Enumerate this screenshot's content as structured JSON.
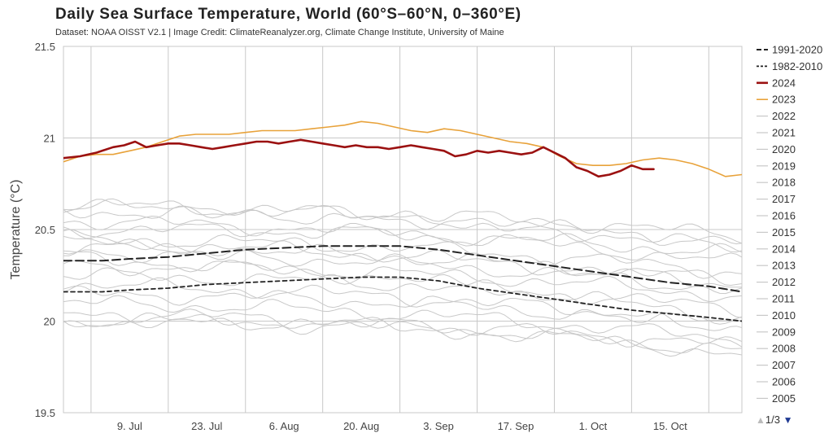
{
  "title": "Daily Sea Surface Temperature, World (60°S–60°N, 0–360°E)",
  "subtitle": "Dataset: NOAA OISST V2.1 | Image Credit: ClimateReanalyzer.org, Climate Change Institute, University of Maine",
  "legend_nav": {
    "up": "▲",
    "page": "1/3",
    "down": "▼"
  },
  "colors": {
    "climatology": "#222222",
    "y2024": "#9b1111",
    "y2023": "#e8a23a",
    "past": "#c8c8c8",
    "grid": "#c8c8c8"
  },
  "chart_data": {
    "type": "line",
    "ylabel": "Temperature (°C)",
    "xlabel": "",
    "ylim": [
      19.5,
      21.5
    ],
    "yticks": [
      19.5,
      20,
      20.5,
      21,
      21.5
    ],
    "ytick_labels": [
      "19.5",
      "20",
      "20.5",
      "21",
      "21.5"
    ],
    "xlim": [
      178,
      301
    ],
    "xticks": [
      {
        "day": 190,
        "label": "9. Jul"
      },
      {
        "day": 204,
        "label": "23. Jul"
      },
      {
        "day": 218,
        "label": "6. Aug"
      },
      {
        "day": 232,
        "label": "20. Aug"
      },
      {
        "day": 246,
        "label": "3. Sep"
      },
      {
        "day": 260,
        "label": "17. Sep"
      },
      {
        "day": 274,
        "label": "1. Oct"
      },
      {
        "day": 288,
        "label": "15. Oct"
      }
    ],
    "x_gridlines": [
      183,
      197,
      211,
      225,
      239,
      253,
      267,
      281,
      295
    ],
    "legend_position": "right",
    "series": [
      {
        "name": "1991-2020",
        "style": "dashed-long",
        "color": "#222222",
        "x": [
          178,
          185,
          190,
          197,
          204,
          211,
          218,
          225,
          232,
          239,
          246,
          253,
          260,
          267,
          274,
          281,
          288,
          295,
          301
        ],
        "values": [
          20.33,
          20.33,
          20.34,
          20.35,
          20.37,
          20.39,
          20.4,
          20.41,
          20.41,
          20.41,
          20.39,
          20.36,
          20.33,
          20.3,
          20.27,
          20.24,
          20.21,
          20.19,
          20.16
        ]
      },
      {
        "name": "1982-2010",
        "style": "dashed-short",
        "color": "#222222",
        "x": [
          178,
          185,
          190,
          197,
          204,
          211,
          218,
          225,
          232,
          239,
          246,
          253,
          260,
          267,
          274,
          281,
          288,
          295,
          301
        ],
        "values": [
          20.16,
          20.16,
          20.17,
          20.18,
          20.2,
          20.21,
          20.22,
          20.23,
          20.24,
          20.24,
          20.22,
          20.18,
          20.15,
          20.12,
          20.09,
          20.06,
          20.04,
          20.02,
          20.0
        ]
      },
      {
        "name": "2024",
        "style": "solid-thick",
        "color": "#9b1111",
        "x": [
          178,
          181,
          184,
          187,
          189,
          191,
          193,
          195,
          197,
          199,
          201,
          203,
          205,
          207,
          209,
          211,
          213,
          215,
          217,
          219,
          221,
          223,
          225,
          227,
          229,
          231,
          233,
          235,
          237,
          239,
          241,
          243,
          245,
          247,
          249,
          251,
          253,
          255,
          257,
          259,
          261,
          263,
          265,
          267,
          269,
          271,
          273,
          275,
          277,
          279,
          281,
          283,
          285
        ],
        "values": [
          20.89,
          20.9,
          20.92,
          20.95,
          20.96,
          20.98,
          20.95,
          20.96,
          20.97,
          20.97,
          20.96,
          20.95,
          20.94,
          20.95,
          20.96,
          20.97,
          20.98,
          20.98,
          20.97,
          20.98,
          20.99,
          20.98,
          20.97,
          20.96,
          20.95,
          20.96,
          20.95,
          20.95,
          20.94,
          20.95,
          20.96,
          20.95,
          20.94,
          20.93,
          20.9,
          20.91,
          20.93,
          20.92,
          20.93,
          20.92,
          20.91,
          20.92,
          20.95,
          20.92,
          20.89,
          20.84,
          20.82,
          20.79,
          20.8,
          20.82,
          20.85,
          20.83,
          20.83
        ]
      },
      {
        "name": "2023",
        "style": "solid",
        "color": "#e8a23a",
        "x": [
          178,
          181,
          184,
          187,
          190,
          193,
          196,
          199,
          202,
          205,
          208,
          211,
          214,
          217,
          220,
          223,
          226,
          229,
          232,
          235,
          238,
          241,
          244,
          247,
          250,
          253,
          256,
          259,
          262,
          265,
          268,
          271,
          274,
          277,
          280,
          283,
          286,
          289,
          292,
          295,
          298,
          301
        ],
        "values": [
          20.87,
          20.9,
          20.91,
          20.91,
          20.93,
          20.95,
          20.98,
          21.01,
          21.02,
          21.02,
          21.02,
          21.03,
          21.04,
          21.04,
          21.04,
          21.05,
          21.06,
          21.07,
          21.09,
          21.08,
          21.06,
          21.04,
          21.03,
          21.05,
          21.04,
          21.02,
          21.0,
          20.98,
          20.97,
          20.95,
          20.9,
          20.86,
          20.85,
          20.85,
          20.86,
          20.88,
          20.89,
          20.88,
          20.86,
          20.83,
          20.79,
          20.8
        ]
      },
      {
        "name": "2022",
        "style": "solid-thin",
        "color": "#c8c8c8",
        "x": [
          178,
          301
        ],
        "values": [
          20.6,
          20.41
        ]
      },
      {
        "name": "2021",
        "style": "solid-thin",
        "color": "#c8c8c8",
        "x": [
          178,
          301
        ],
        "values": [
          20.45,
          20.25
        ]
      },
      {
        "name": "2020",
        "style": "solid-thin",
        "color": "#c8c8c8",
        "x": [
          178,
          301
        ],
        "values": [
          20.62,
          20.45
        ]
      },
      {
        "name": "2019",
        "style": "solid-thin",
        "color": "#c8c8c8",
        "x": [
          178,
          301
        ],
        "values": [
          20.55,
          20.3
        ]
      },
      {
        "name": "2018",
        "style": "solid-thin",
        "color": "#c8c8c8",
        "x": [
          178,
          301
        ],
        "values": [
          20.38,
          20.15
        ]
      },
      {
        "name": "2017",
        "style": "solid-thin",
        "color": "#c8c8c8",
        "x": [
          178,
          301
        ],
        "values": [
          20.43,
          20.18
        ]
      },
      {
        "name": "2016",
        "style": "solid-thin",
        "color": "#c8c8c8",
        "x": [
          178,
          301
        ],
        "values": [
          20.64,
          20.38
        ]
      },
      {
        "name": "2015",
        "style": "solid-thin",
        "color": "#c8c8c8",
        "x": [
          178,
          301
        ],
        "values": [
          20.5,
          20.35
        ]
      },
      {
        "name": "2014",
        "style": "solid-thin",
        "color": "#c8c8c8",
        "x": [
          178,
          301
        ],
        "values": [
          20.3,
          20.12
        ]
      },
      {
        "name": "2013",
        "style": "solid-thin",
        "color": "#c8c8c8",
        "x": [
          178,
          301
        ],
        "values": [
          20.1,
          19.88
        ]
      },
      {
        "name": "2012",
        "style": "solid-thin",
        "color": "#c8c8c8",
        "x": [
          178,
          301
        ],
        "values": [
          20.2,
          19.96
        ]
      },
      {
        "name": "2011",
        "style": "solid-thin",
        "color": "#c8c8c8",
        "x": [
          178,
          301
        ],
        "values": [
          20.0,
          19.82
        ]
      },
      {
        "name": "2010",
        "style": "solid-thin",
        "color": "#c8c8c8",
        "x": [
          178,
          301
        ],
        "values": [
          20.35,
          20.0
        ]
      },
      {
        "name": "2009",
        "style": "solid-thin",
        "color": "#c8c8c8",
        "x": [
          178,
          301
        ],
        "values": [
          20.25,
          20.05
        ]
      },
      {
        "name": "2008",
        "style": "solid-thin",
        "color": "#c8c8c8",
        "x": [
          178,
          301
        ],
        "values": [
          20.0,
          19.85
        ]
      },
      {
        "name": "2007",
        "style": "solid-thin",
        "color": "#c8c8c8",
        "x": [
          178,
          301
        ],
        "values": [
          20.05,
          19.8
        ]
      },
      {
        "name": "2006",
        "style": "solid-thin",
        "color": "#c8c8c8",
        "x": [
          178,
          301
        ],
        "values": [
          20.15,
          19.95
        ]
      },
      {
        "name": "2005",
        "style": "solid-thin",
        "color": "#c8c8c8",
        "x": [
          178,
          301
        ],
        "values": [
          20.4,
          20.2
        ]
      }
    ]
  }
}
